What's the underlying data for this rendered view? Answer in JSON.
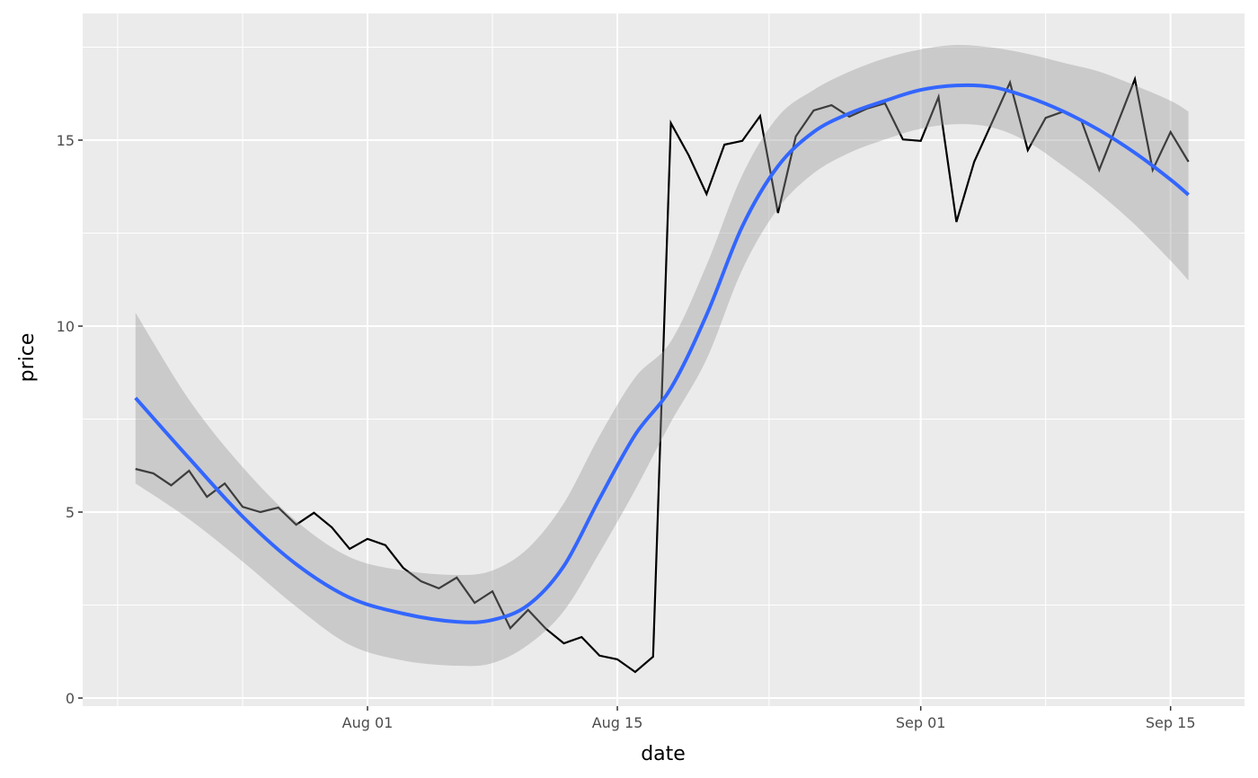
{
  "chart_data": {
    "type": "line",
    "title": "",
    "xlabel": "date",
    "ylabel": "price",
    "x_ticks": [
      "Aug 01",
      "Aug 15",
      "Sep 01",
      "Sep 15"
    ],
    "y_ticks": [
      0,
      5,
      10,
      15
    ],
    "xlim": [
      "Jul 16",
      "Sep 18"
    ],
    "ylim": [
      -0.2,
      18.4
    ],
    "grid": true,
    "colors": {
      "panel": "#EBEBEB",
      "grid": "#FFFFFF",
      "line": "#000000",
      "smooth": "#3366FF",
      "band": "#999999"
    },
    "series": [
      {
        "type": "line",
        "x": [
          "Jul 19",
          "Jul 20",
          "Jul 21",
          "Jul 22",
          "Jul 23",
          "Jul 24",
          "Jul 25",
          "Jul 26",
          "Jul 27",
          "Jul 28",
          "Jul 29",
          "Jul 30",
          "Jul 31",
          "Aug 01",
          "Aug 02",
          "Aug 03",
          "Aug 04",
          "Aug 05",
          "Aug 06",
          "Aug 07",
          "Aug 08",
          "Aug 09",
          "Aug 10",
          "Aug 11",
          "Aug 12",
          "Aug 13",
          "Aug 14",
          "Aug 15",
          "Aug 16",
          "Aug 17",
          "Aug 18",
          "Aug 19",
          "Aug 20",
          "Aug 21",
          "Aug 22",
          "Aug 23",
          "Aug 24",
          "Aug 25",
          "Aug 26",
          "Aug 27",
          "Aug 28",
          "Aug 29",
          "Aug 30",
          "Aug 31",
          "Sep 01",
          "Sep 02",
          "Sep 03",
          "Sep 04",
          "Sep 05",
          "Sep 06",
          "Sep 07",
          "Sep 08",
          "Sep 09",
          "Sep 10",
          "Sep 11",
          "Sep 12",
          "Sep 13",
          "Sep 14",
          "Sep 15",
          "Sep 16"
        ],
        "values": [
          6.16,
          6.04,
          5.72,
          6.11,
          5.41,
          5.77,
          5.14,
          5.0,
          5.12,
          4.66,
          4.98,
          4.59,
          4.01,
          4.28,
          4.11,
          3.5,
          3.14,
          2.95,
          3.24,
          2.56,
          2.87,
          1.88,
          2.37,
          1.86,
          1.47,
          1.64,
          1.14,
          1.04,
          0.7,
          1.11,
          15.46,
          14.59,
          13.55,
          14.88,
          14.98,
          15.65,
          13.04,
          15.1,
          15.8,
          15.94,
          15.63,
          15.85,
          15.99,
          15.02,
          14.98,
          16.16,
          12.8,
          14.42,
          15.48,
          16.55,
          14.73,
          15.6,
          15.77,
          15.53,
          14.2,
          15.41,
          16.64,
          14.2,
          15.22,
          14.42
        ]
      },
      {
        "type": "smooth",
        "x": [
          "Jul 19",
          "Jul 22",
          "Jul 25",
          "Jul 28",
          "Jul 31",
          "Aug 03",
          "Aug 06",
          "Aug 08",
          "Aug 10",
          "Aug 12",
          "Aug 14",
          "Aug 16",
          "Aug 18",
          "Aug 20",
          "Aug 22",
          "Aug 24",
          "Aug 26",
          "Aug 28",
          "Aug 30",
          "Sep 01",
          "Sep 03",
          "Sep 05",
          "Sep 07",
          "Sep 09",
          "Sep 11",
          "Sep 13",
          "Sep 15",
          "Sep 16"
        ],
        "values": [
          8.07,
          6.45,
          4.88,
          3.6,
          2.7,
          2.27,
          2.05,
          2.1,
          2.5,
          3.55,
          5.36,
          7.08,
          8.33,
          10.3,
          12.68,
          14.3,
          15.22,
          15.72,
          16.06,
          16.35,
          16.47,
          16.43,
          16.16,
          15.77,
          15.27,
          14.66,
          13.94,
          13.53
        ],
        "upper": [
          10.36,
          8.02,
          6.21,
          4.76,
          3.79,
          3.43,
          3.31,
          3.43,
          4.03,
          5.24,
          7.05,
          8.62,
          9.59,
          11.64,
          14.06,
          15.63,
          16.35,
          16.84,
          17.2,
          17.44,
          17.56,
          17.49,
          17.32,
          17.08,
          16.84,
          16.47,
          16.06,
          15.77
        ],
        "lower": [
          5.77,
          4.81,
          3.67,
          2.46,
          1.43,
          1.01,
          0.87,
          0.94,
          1.43,
          2.34,
          3.91,
          5.6,
          7.42,
          9.11,
          11.52,
          13.16,
          14.11,
          14.66,
          15.02,
          15.31,
          15.43,
          15.34,
          14.95,
          14.3,
          13.57,
          12.73,
          11.76,
          11.23
        ]
      }
    ]
  }
}
